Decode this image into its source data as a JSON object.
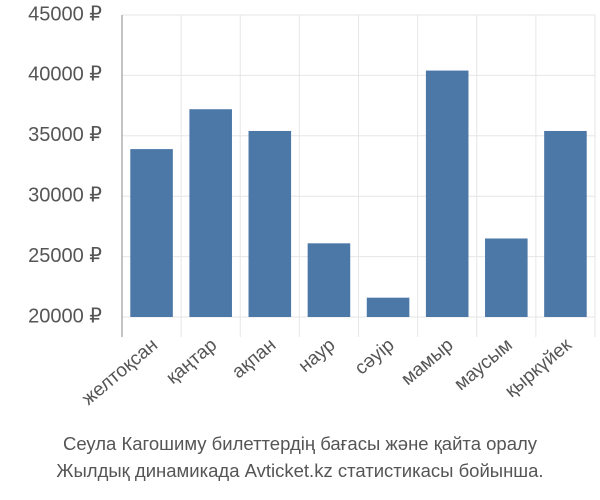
{
  "chart_data": {
    "type": "bar",
    "categories": [
      "желтоқсан",
      "қаңтар",
      "ақпан",
      "наур",
      "сәуір",
      "мамыр",
      "маусым",
      "қыркүйек"
    ],
    "values": [
      33900,
      37200,
      35400,
      26100,
      21600,
      40400,
      26500,
      35400
    ],
    "color": "#4c78a8",
    "ylim": [
      20000,
      45000
    ],
    "yticks": [
      {
        "value": 20000,
        "label": "20000 ₽"
      },
      {
        "value": 25000,
        "label": "25000 ₽"
      },
      {
        "value": 30000,
        "label": "30000 ₽"
      },
      {
        "value": 35000,
        "label": "35000 ₽"
      },
      {
        "value": 40000,
        "label": "40000 ₽"
      },
      {
        "value": 45000,
        "label": "45000 ₽"
      }
    ],
    "grid": true,
    "caption": [
      "Сеула Кагошиму билеттердің бағасы және қайта оралу",
      "Жылдық динамикада Avticket.kz статистикасы бойынша."
    ]
  }
}
